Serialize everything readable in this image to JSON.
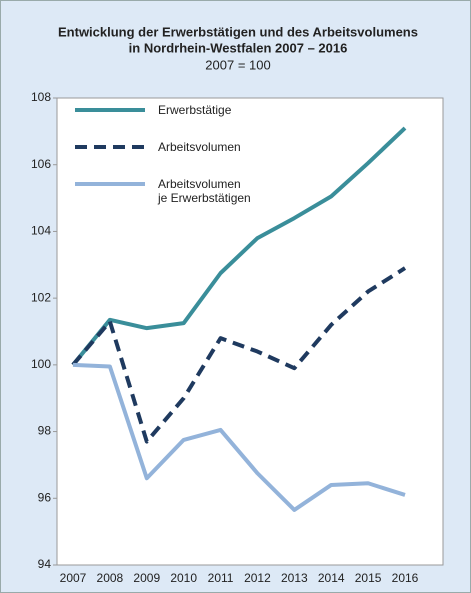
{
  "chart_data": {
    "type": "line",
    "title": [
      "Entwicklung der Erwerbstätigen und des Arbeitsvolumens",
      "in Nordrhein-Westfalen 2007 – 2016"
    ],
    "subtitle": "2007 = 100",
    "categories": [
      "2007",
      "2008",
      "2009",
      "2010",
      "2011",
      "2012",
      "2013",
      "2014",
      "2015",
      "2016"
    ],
    "series": [
      {
        "name": "Erwerbstätige",
        "color": "#3a8e9a",
        "dashed": false,
        "values": [
          100,
          101.35,
          101.1,
          101.25,
          102.75,
          103.8,
          104.4,
          105.05,
          106.05,
          107.1
        ]
      },
      {
        "name": "Arbeitsvolumen",
        "color": "#1f3a5f",
        "dashed": true,
        "values": [
          100,
          101.3,
          97.7,
          99.0,
          100.8,
          100.4,
          99.9,
          101.2,
          102.2,
          102.9
        ]
      },
      {
        "name": "Arbeitsvolumen\nje Erwerbstätigen",
        "color": "#93b3da",
        "dashed": false,
        "values": [
          100,
          99.95,
          96.6,
          97.75,
          98.05,
          96.75,
          95.65,
          96.4,
          96.45,
          96.1
        ]
      }
    ],
    "ylim": [
      94,
      108
    ],
    "yticks": [
      94,
      96,
      98,
      100,
      102,
      104,
      106,
      108
    ],
    "grid": false
  }
}
